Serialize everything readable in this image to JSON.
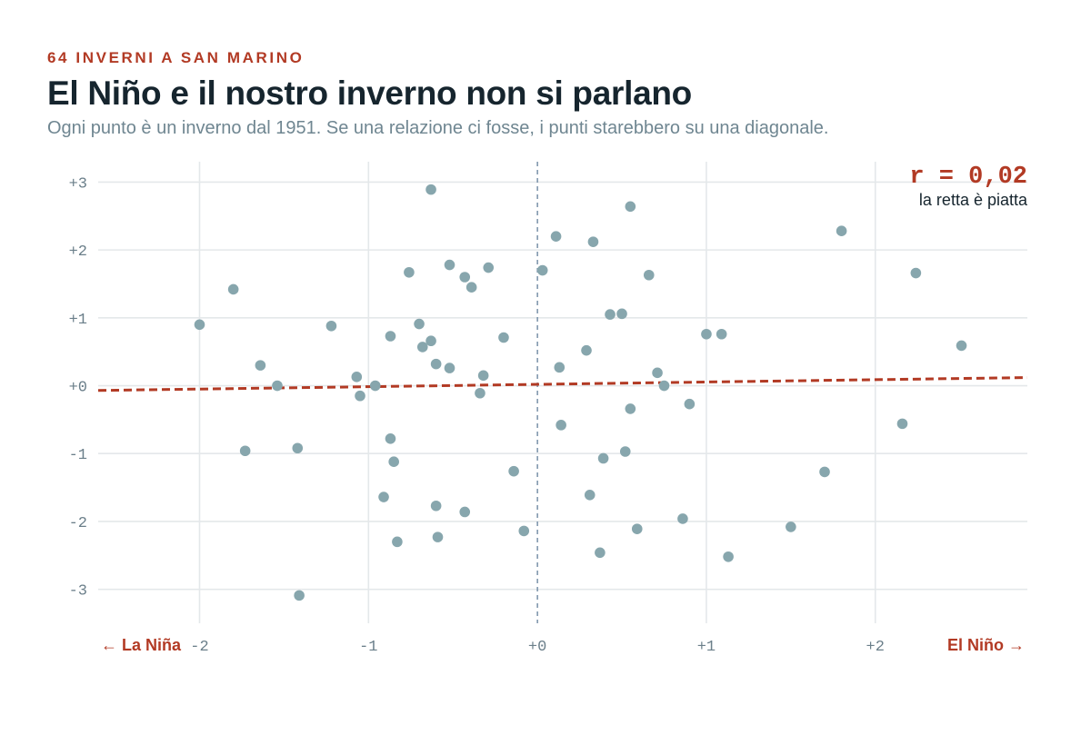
{
  "header": {
    "kicker": "64 INVERNI A SAN MARINO",
    "title": "El Niño e il nostro inverno non si parlano",
    "subtitle": "Ogni punto è un inverno dal 1951. Se una relazione ci fosse, i punti starebbero su una diagonale."
  },
  "annotation": {
    "r_value": "r = 0,02",
    "r_note": "la retta è piatta"
  },
  "axis_labels": {
    "left_end": "← La Niña",
    "right_end": "El Niño →"
  },
  "colors": {
    "accent": "#b23a24",
    "points": "#87a6ad",
    "grid": "#e4e8ea",
    "zero_line": "#6f89a3",
    "text": "#16252e"
  },
  "chart_data": {
    "type": "scatter",
    "xlim": [
      -2.6,
      2.9
    ],
    "ylim": [
      -3.5,
      3.3
    ],
    "x_ticks": [
      -2,
      -1,
      0,
      1,
      2
    ],
    "x_tick_labels": [
      "-2",
      "-1",
      "+0",
      "+1",
      "+2"
    ],
    "y_ticks": [
      3,
      2,
      1,
      0,
      -1,
      -2,
      -3
    ],
    "y_tick_labels": [
      "+3",
      "+2",
      "+1",
      "+0",
      "-1",
      "-2",
      "-3"
    ],
    "grid": true,
    "zero_reference_x": 0,
    "trend_line": {
      "x": [
        -2.6,
        2.9
      ],
      "y": [
        -0.07,
        0.12
      ]
    },
    "points": [
      {
        "x": -2.0,
        "y": 0.9
      },
      {
        "x": -1.8,
        "y": 1.42
      },
      {
        "x": -1.64,
        "y": 0.3
      },
      {
        "x": -1.73,
        "y": -0.96
      },
      {
        "x": -1.54,
        "y": 0.0
      },
      {
        "x": -1.42,
        "y": -0.92
      },
      {
        "x": -1.41,
        "y": -3.09
      },
      {
        "x": -1.22,
        "y": 0.88
      },
      {
        "x": -1.07,
        "y": 0.13
      },
      {
        "x": -1.05,
        "y": -0.15
      },
      {
        "x": -0.96,
        "y": 0.0
      },
      {
        "x": -0.91,
        "y": -1.64
      },
      {
        "x": -0.87,
        "y": 0.73
      },
      {
        "x": -0.87,
        "y": -0.78
      },
      {
        "x": -0.85,
        "y": -1.12
      },
      {
        "x": -0.83,
        "y": -2.3
      },
      {
        "x": -0.76,
        "y": 1.67
      },
      {
        "x": -0.7,
        "y": 0.91
      },
      {
        "x": -0.68,
        "y": 0.57
      },
      {
        "x": -0.63,
        "y": 0.66
      },
      {
        "x": -0.63,
        "y": 2.89
      },
      {
        "x": -0.6,
        "y": 0.32
      },
      {
        "x": -0.6,
        "y": -1.77
      },
      {
        "x": -0.59,
        "y": -2.23
      },
      {
        "x": -0.52,
        "y": 1.78
      },
      {
        "x": -0.52,
        "y": 0.26
      },
      {
        "x": -0.43,
        "y": 1.6
      },
      {
        "x": -0.43,
        "y": -1.86
      },
      {
        "x": -0.39,
        "y": 1.45
      },
      {
        "x": -0.34,
        "y": -0.11
      },
      {
        "x": -0.32,
        "y": 0.15
      },
      {
        "x": -0.29,
        "y": 1.74
      },
      {
        "x": -0.2,
        "y": 0.71
      },
      {
        "x": -0.14,
        "y": -1.26
      },
      {
        "x": -0.08,
        "y": -2.14
      },
      {
        "x": 0.03,
        "y": 1.7
      },
      {
        "x": 0.11,
        "y": 2.2
      },
      {
        "x": 0.13,
        "y": 0.27
      },
      {
        "x": 0.14,
        "y": -0.58
      },
      {
        "x": 0.29,
        "y": 0.52
      },
      {
        "x": 0.31,
        "y": -1.61
      },
      {
        "x": 0.33,
        "y": 2.12
      },
      {
        "x": 0.37,
        "y": -2.46
      },
      {
        "x": 0.39,
        "y": -1.07
      },
      {
        "x": 0.43,
        "y": 1.05
      },
      {
        "x": 0.5,
        "y": 1.06
      },
      {
        "x": 0.52,
        "y": -0.97
      },
      {
        "x": 0.55,
        "y": -0.34
      },
      {
        "x": 0.55,
        "y": 2.64
      },
      {
        "x": 0.59,
        "y": -2.11
      },
      {
        "x": 0.66,
        "y": 1.63
      },
      {
        "x": 0.71,
        "y": 0.19
      },
      {
        "x": 0.75,
        "y": 0.0
      },
      {
        "x": 0.86,
        "y": -1.96
      },
      {
        "x": 0.9,
        "y": -0.27
      },
      {
        "x": 1.0,
        "y": 0.76
      },
      {
        "x": 1.09,
        "y": 0.76
      },
      {
        "x": 1.13,
        "y": -2.52
      },
      {
        "x": 1.5,
        "y": -2.08
      },
      {
        "x": 1.7,
        "y": -1.27
      },
      {
        "x": 1.8,
        "y": 2.28
      },
      {
        "x": 2.16,
        "y": -0.56
      },
      {
        "x": 2.24,
        "y": 1.66
      },
      {
        "x": 2.51,
        "y": 0.59
      }
    ]
  }
}
